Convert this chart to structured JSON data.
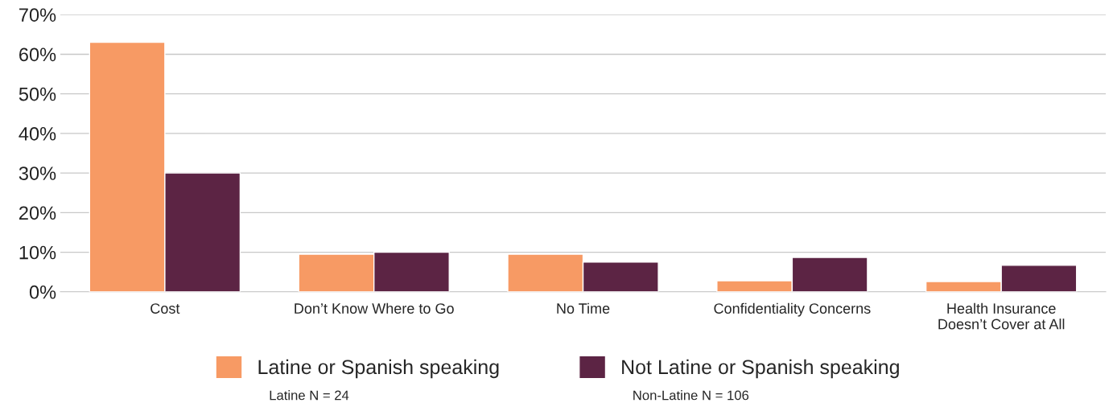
{
  "chart_data": {
    "type": "bar",
    "categories": [
      "Cost",
      "Don’t Know Where to Go",
      "No Time",
      "Confidentiality Concerns",
      "Health Insurance\nDoesn’t Cover at All"
    ],
    "series": [
      {
        "name": "Latine or Spanish speaking",
        "color": "#f79a64",
        "values": [
          63,
          9.5,
          9.5,
          2.8,
          2.6
        ]
      },
      {
        "name": "Not Latine or Spanish speaking",
        "color": "#5c2444",
        "values": [
          30,
          10,
          7.5,
          8.7,
          6.7
        ]
      }
    ],
    "ylim": [
      0,
      70
    ],
    "yticks": [
      {
        "value": 0,
        "label": "0%"
      },
      {
        "value": 10,
        "label": "10%"
      },
      {
        "value": 20,
        "label": "20%"
      },
      {
        "value": 30,
        "label": "30%"
      },
      {
        "value": 40,
        "label": "40%"
      },
      {
        "value": 50,
        "label": "50%"
      },
      {
        "value": 60,
        "label": "60%"
      },
      {
        "value": 70,
        "label": "70%"
      }
    ],
    "grid": "y",
    "legend": "bottom",
    "annotations": [
      "Latine N = 24",
      "Non-Latine N = 106"
    ]
  }
}
